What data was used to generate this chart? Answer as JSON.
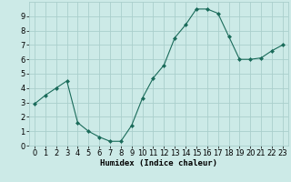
{
  "x": [
    0,
    1,
    2,
    3,
    4,
    5,
    6,
    7,
    8,
    9,
    10,
    11,
    12,
    13,
    14,
    15,
    16,
    17,
    18,
    19,
    20,
    21,
    22,
    23
  ],
  "y": [
    2.9,
    3.5,
    4.0,
    4.5,
    1.6,
    1.0,
    0.6,
    0.3,
    0.3,
    1.4,
    3.3,
    4.7,
    5.6,
    7.5,
    8.4,
    9.5,
    9.5,
    9.2,
    7.6,
    6.0,
    6.0,
    6.1,
    6.6,
    7.0
  ],
  "line_color": "#1a6b5a",
  "marker": "D",
  "marker_size": 2.0,
  "bg_color": "#cceae7",
  "grid_color": "#aacfcc",
  "xlabel": "Humidex (Indice chaleur)",
  "xlim": [
    -0.5,
    23.5
  ],
  "ylim": [
    0,
    10
  ],
  "xticks": [
    0,
    1,
    2,
    3,
    4,
    5,
    6,
    7,
    8,
    9,
    10,
    11,
    12,
    13,
    14,
    15,
    16,
    17,
    18,
    19,
    20,
    21,
    22,
    23
  ],
  "yticks": [
    0,
    1,
    2,
    3,
    4,
    5,
    6,
    7,
    8,
    9
  ],
  "xlabel_fontsize": 6.5,
  "tick_fontsize": 6.0,
  "linewidth": 0.8
}
